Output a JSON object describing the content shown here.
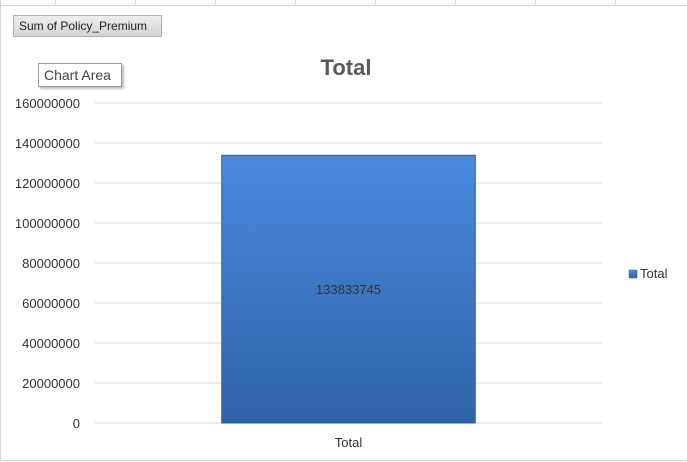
{
  "pivot_field_button": "Sum of Policy_Premium",
  "tooltip": "Chart Area",
  "colors": {
    "bar_top": "#4a8ade",
    "bar_bottom": "#2f63a8",
    "grid": "#d9d9d9",
    "text": "#333333"
  },
  "chart_data": {
    "type": "bar",
    "title": "Total",
    "categories": [
      "Total"
    ],
    "series": [
      {
        "name": "Total",
        "values": [
          133833745
        ]
      }
    ],
    "data_labels": [
      "133833745"
    ],
    "yticks": [
      "0",
      "20000000",
      "40000000",
      "60000000",
      "80000000",
      "100000000",
      "120000000",
      "140000000",
      "160000000"
    ],
    "ylim": [
      0,
      160000000
    ],
    "grid": true,
    "legend": "right"
  }
}
